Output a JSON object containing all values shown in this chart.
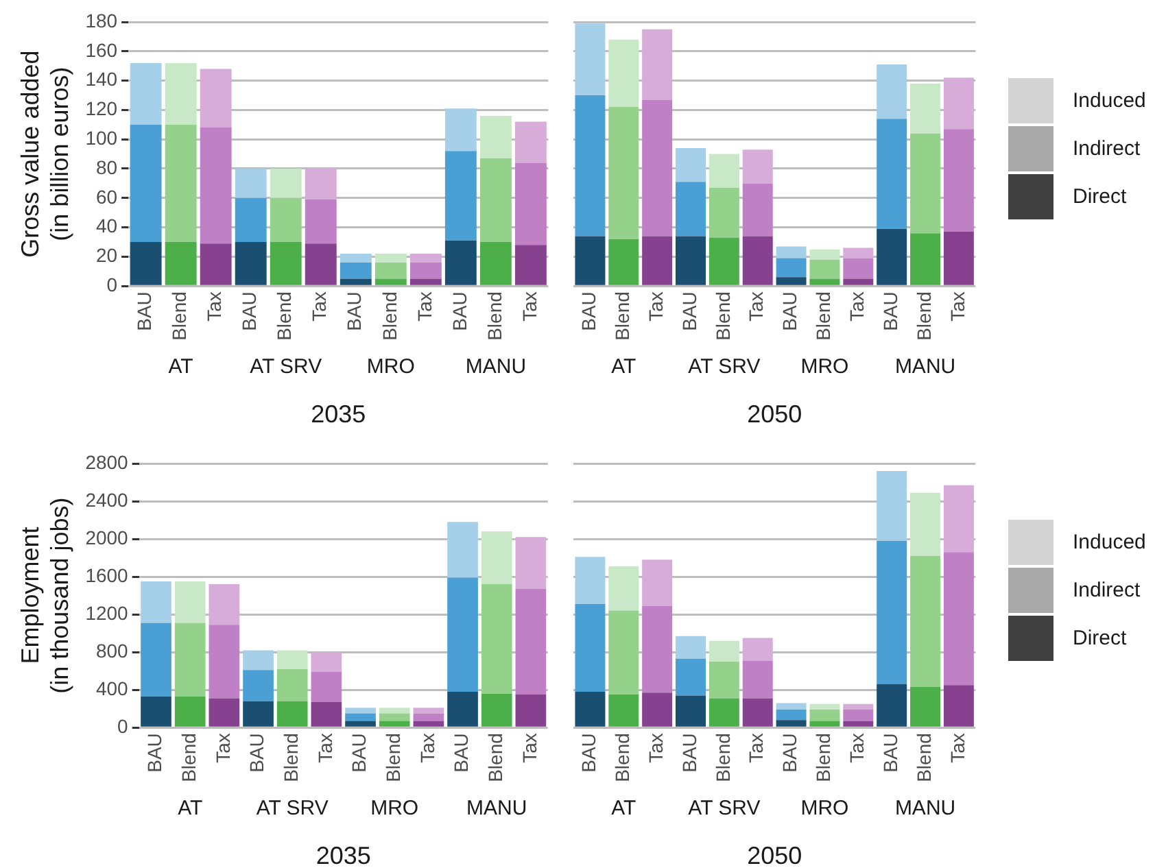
{
  "chart_data": [
    {
      "type": "bar",
      "stacked": true,
      "xlabel": "2035",
      "ylabel": "Gross value added\n(in billion euros)",
      "categories": [
        "BAU",
        "Blend",
        "Tax",
        "BAU",
        "Blend",
        "Tax",
        "BAU",
        "Blend",
        "Tax",
        "BAU",
        "Blend",
        "Tax"
      ],
      "annotations": [
        "AT",
        "AT SRV",
        "MRO",
        "MANU"
      ],
      "ylim": [
        0,
        180
      ],
      "yticks": [
        0,
        20,
        40,
        60,
        80,
        100,
        120,
        140,
        160,
        180
      ],
      "grid": "y",
      "legend": false,
      "series": [
        {
          "colors": [
            "#1b4f72",
            "#4daf4a",
            "#86418f",
            "#1b4f72",
            "#4daf4a",
            "#86418f",
            "#1b4f72",
            "#4daf4a",
            "#86418f",
            "#1b4f72",
            "#4daf4a",
            "#86418f"
          ],
          "values": [
            30,
            30,
            29,
            30,
            30,
            29,
            5,
            5,
            5,
            31,
            30,
            28
          ]
        },
        {
          "colors": [
            "#4aa0d5",
            "#94d18b",
            "#c080c6",
            "#4aa0d5",
            "#94d18b",
            "#c080c6",
            "#4aa0d5",
            "#94d18b",
            "#c080c6",
            "#4aa0d5",
            "#94d18b",
            "#c080c6"
          ],
          "values": [
            80,
            80,
            79,
            30,
            30,
            30,
            11,
            11,
            11,
            61,
            57,
            56
          ]
        },
        {
          "colors": [
            "#a6cfe9",
            "#c9e8c7",
            "#d8acd9",
            "#a6cfe9",
            "#c9e8c7",
            "#d8acd9",
            "#a6cfe9",
            "#c9e8c7",
            "#d8acd9",
            "#a6cfe9",
            "#c9e8c7",
            "#d8acd9"
          ],
          "values": [
            42,
            42,
            40,
            20,
            20,
            21,
            6,
            6,
            6,
            29,
            29,
            28
          ]
        }
      ]
    },
    {
      "type": "bar",
      "stacked": true,
      "xlabel": "2050",
      "categories": [
        "BAU",
        "Blend",
        "Tax",
        "BAU",
        "Blend",
        "Tax",
        "BAU",
        "Blend",
        "Tax",
        "BAU",
        "Blend",
        "Tax"
      ],
      "annotations": [
        "AT",
        "AT SRV",
        "MRO",
        "MANU"
      ],
      "ylim": [
        0,
        180
      ],
      "yticks": [
        0,
        20,
        40,
        60,
        80,
        100,
        120,
        140,
        160,
        180
      ],
      "grid": "y",
      "legend": "right",
      "tick_labels": "x",
      "series": [
        {
          "name": "Direct",
          "color": "#404040",
          "colors": [
            "#1b4f72",
            "#4daf4a",
            "#86418f",
            "#1b4f72",
            "#4daf4a",
            "#86418f",
            "#1b4f72",
            "#4daf4a",
            "#86418f",
            "#1b4f72",
            "#4daf4a",
            "#86418f"
          ],
          "values": [
            34,
            32,
            34,
            34,
            33,
            34,
            6,
            5,
            5,
            39,
            36,
            37
          ]
        },
        {
          "name": "Indirect",
          "color": "#a9a9a9",
          "colors": [
            "#4aa0d5",
            "#94d18b",
            "#c080c6",
            "#4aa0d5",
            "#94d18b",
            "#c080c6",
            "#4aa0d5",
            "#94d18b",
            "#c080c6",
            "#4aa0d5",
            "#94d18b",
            "#c080c6"
          ],
          "values": [
            96,
            90,
            93,
            37,
            34,
            36,
            13,
            13,
            14,
            75,
            68,
            70
          ]
        },
        {
          "name": "Induced",
          "color": "#d3d3d3",
          "colors": [
            "#a6cfe9",
            "#c9e8c7",
            "#d8acd9",
            "#a6cfe9",
            "#c9e8c7",
            "#d8acd9",
            "#a6cfe9",
            "#c9e8c7",
            "#d8acd9",
            "#a6cfe9",
            "#c9e8c7",
            "#d8acd9"
          ],
          "values": [
            49,
            46,
            48,
            23,
            23,
            23,
            8,
            7,
            7,
            37,
            34,
            35
          ]
        }
      ]
    },
    {
      "type": "bar",
      "stacked": true,
      "xlabel": "2035",
      "ylabel": "Employment\n(in thousand jobs)",
      "categories": [
        "BAU",
        "Blend",
        "Tax",
        "BAU",
        "Blend",
        "Tax",
        "BAU",
        "Blend",
        "Tax",
        "BAU",
        "Blend",
        "Tax"
      ],
      "annotations": [
        "AT",
        "AT SRV",
        "MRO",
        "MANU"
      ],
      "ylim": [
        0,
        2800
      ],
      "yticks": [
        0,
        400,
        800,
        1200,
        1600,
        2000,
        2400,
        2800
      ],
      "grid": "y",
      "legend": false,
      "series": [
        {
          "colors": [
            "#1b4f72",
            "#4daf4a",
            "#86418f",
            "#1b4f72",
            "#4daf4a",
            "#86418f",
            "#1b4f72",
            "#4daf4a",
            "#86418f",
            "#1b4f72",
            "#4daf4a",
            "#86418f"
          ],
          "values": [
            330,
            330,
            310,
            280,
            280,
            270,
            70,
            70,
            70,
            380,
            360,
            350
          ]
        },
        {
          "colors": [
            "#4aa0d5",
            "#94d18b",
            "#c080c6",
            "#4aa0d5",
            "#94d18b",
            "#c080c6",
            "#4aa0d5",
            "#94d18b",
            "#c080c6",
            "#4aa0d5",
            "#94d18b",
            "#c080c6"
          ],
          "values": [
            780,
            780,
            780,
            330,
            340,
            320,
            80,
            80,
            80,
            1210,
            1160,
            1120
          ]
        },
        {
          "colors": [
            "#a6cfe9",
            "#c9e8c7",
            "#d8acd9",
            "#a6cfe9",
            "#c9e8c7",
            "#d8acd9",
            "#a6cfe9",
            "#c9e8c7",
            "#d8acd9",
            "#a6cfe9",
            "#c9e8c7",
            "#d8acd9"
          ],
          "values": [
            440,
            440,
            430,
            210,
            200,
            210,
            60,
            60,
            60,
            590,
            560,
            550
          ]
        }
      ]
    },
    {
      "type": "bar",
      "stacked": true,
      "xlabel": "2050",
      "categories": [
        "BAU",
        "Blend",
        "Tax",
        "BAU",
        "Blend",
        "Tax",
        "BAU",
        "Blend",
        "Tax",
        "BAU",
        "Blend",
        "Tax"
      ],
      "annotations": [
        "AT",
        "AT SRV",
        "MRO",
        "MANU"
      ],
      "ylim": [
        0,
        2800
      ],
      "yticks": [
        0,
        400,
        800,
        1200,
        1600,
        2000,
        2400,
        2800
      ],
      "grid": "y",
      "legend": "right",
      "tick_labels": "x",
      "series": [
        {
          "name": "Direct",
          "color": "#404040",
          "colors": [
            "#1b4f72",
            "#4daf4a",
            "#86418f",
            "#1b4f72",
            "#4daf4a",
            "#86418f",
            "#1b4f72",
            "#4daf4a",
            "#86418f",
            "#1b4f72",
            "#4daf4a",
            "#86418f"
          ],
          "values": [
            380,
            350,
            370,
            340,
            310,
            310,
            80,
            70,
            70,
            460,
            430,
            450
          ]
        },
        {
          "name": "Indirect",
          "color": "#a9a9a9",
          "colors": [
            "#4aa0d5",
            "#94d18b",
            "#c080c6",
            "#4aa0d5",
            "#94d18b",
            "#c080c6",
            "#4aa0d5",
            "#94d18b",
            "#c080c6",
            "#4aa0d5",
            "#94d18b",
            "#c080c6"
          ],
          "values": [
            930,
            890,
            920,
            390,
            390,
            400,
            110,
            120,
            120,
            1520,
            1390,
            1410
          ]
        },
        {
          "name": "Induced",
          "color": "#d3d3d3",
          "colors": [
            "#a6cfe9",
            "#c9e8c7",
            "#d8acd9",
            "#a6cfe9",
            "#c9e8c7",
            "#d8acd9",
            "#a6cfe9",
            "#c9e8c7",
            "#d8acd9",
            "#a6cfe9",
            "#c9e8c7",
            "#d8acd9"
          ],
          "values": [
            500,
            470,
            490,
            240,
            220,
            240,
            70,
            60,
            60,
            740,
            670,
            710
          ]
        }
      ]
    }
  ]
}
